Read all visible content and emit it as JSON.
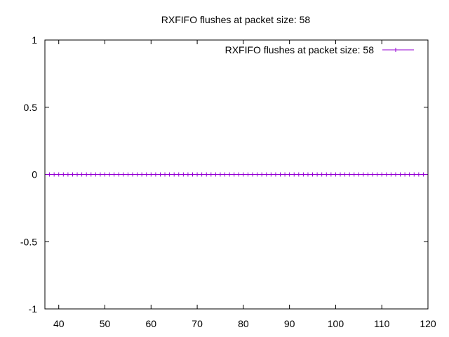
{
  "chart_data": {
    "type": "line",
    "title": "RXFIFO flushes at packet size: 58",
    "xlabel": "",
    "ylabel": "",
    "xlim": [
      37,
      120
    ],
    "ylim": [
      -1,
      1
    ],
    "x_ticks": [
      40,
      50,
      60,
      70,
      80,
      90,
      100,
      110,
      120
    ],
    "x_tick_labels": [
      "40",
      "50",
      "60",
      "70",
      "80",
      "90",
      "100",
      "110",
      "120"
    ],
    "y_ticks": [
      1,
      0.5,
      0,
      -0.5,
      -1
    ],
    "y_tick_labels": [
      "1",
      "0.5",
      "0",
      "-0.5",
      "-1"
    ],
    "grid": false,
    "legend_position": "top-right",
    "series": [
      {
        "name": "RXFIFO flushes at packet size: 58",
        "color": "#9400d3",
        "marker": "plus",
        "x": [
          38,
          39,
          40,
          41,
          42,
          43,
          44,
          45,
          46,
          47,
          48,
          49,
          50,
          51,
          52,
          53,
          54,
          55,
          56,
          57,
          58,
          59,
          60,
          61,
          62,
          63,
          64,
          65,
          66,
          67,
          68,
          69,
          70,
          71,
          72,
          73,
          74,
          75,
          76,
          77,
          78,
          79,
          80,
          81,
          82,
          83,
          84,
          85,
          86,
          87,
          88,
          89,
          90,
          91,
          92,
          93,
          94,
          95,
          96,
          97,
          98,
          99,
          100,
          101,
          102,
          103,
          104,
          105,
          106,
          107,
          108,
          109,
          110,
          111,
          112,
          113,
          114,
          115,
          116,
          117,
          118,
          119
        ],
        "y": [
          0,
          0,
          0,
          0,
          0,
          0,
          0,
          0,
          0,
          0,
          0,
          0,
          0,
          0,
          0,
          0,
          0,
          0,
          0,
          0,
          0,
          0,
          0,
          0,
          0,
          0,
          0,
          0,
          0,
          0,
          0,
          0,
          0,
          0,
          0,
          0,
          0,
          0,
          0,
          0,
          0,
          0,
          0,
          0,
          0,
          0,
          0,
          0,
          0,
          0,
          0,
          0,
          0,
          0,
          0,
          0,
          0,
          0,
          0,
          0,
          0,
          0,
          0,
          0,
          0,
          0,
          0,
          0,
          0,
          0,
          0,
          0,
          0,
          0,
          0,
          0,
          0,
          0,
          0,
          0,
          0,
          0
        ]
      }
    ]
  }
}
